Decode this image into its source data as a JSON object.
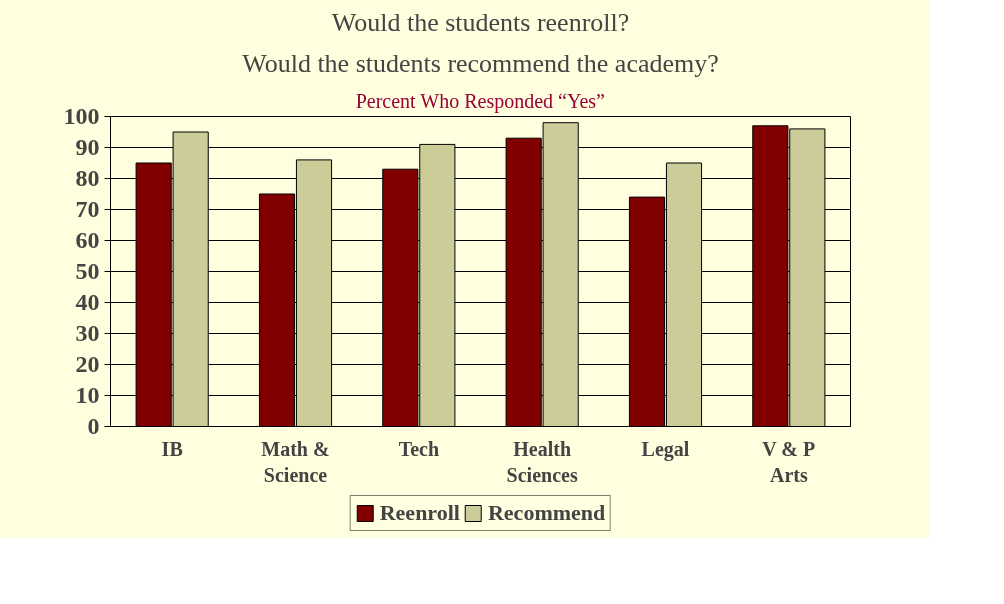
{
  "chart_data": {
    "type": "bar",
    "title": "Would the students reenroll?",
    "subtitle": "Would the students recommend the academy?",
    "annotations": [
      "Percent Who Responded “Yes”"
    ],
    "categories": [
      "IB",
      "Math & Science",
      "Tech",
      "Health Sciences",
      "Legal",
      "V & P Arts"
    ],
    "series": [
      {
        "name": "Reenroll",
        "color": "#800000",
        "values": [
          85,
          75,
          83,
          93,
          74,
          97
        ]
      },
      {
        "name": "Recommend",
        "color": "#cccc99",
        "values": [
          95,
          86,
          91,
          98,
          85,
          96
        ]
      }
    ],
    "ylim": [
      0,
      100
    ],
    "yticks": [
      0,
      10,
      20,
      30,
      40,
      50,
      60,
      70,
      80,
      90,
      100
    ],
    "grid": "y",
    "legend": "bottom"
  }
}
